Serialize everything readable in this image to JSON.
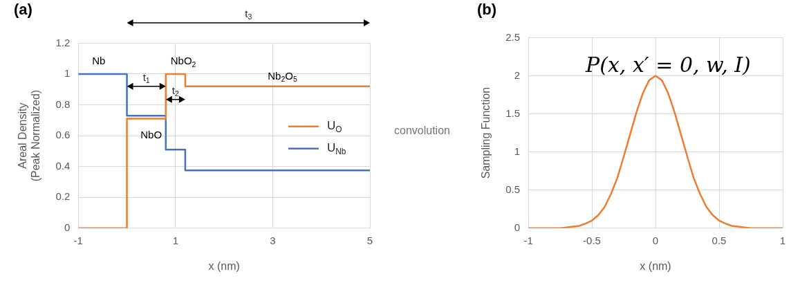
{
  "chart_data": [
    {
      "type": "step",
      "title": "(a)",
      "xlabel": "x (nm)",
      "ylabel": "Areal Density\n(Peak Normalized)",
      "x": [
        -1,
        0,
        0.8,
        1.2,
        5
      ],
      "series": [
        {
          "name": "U$_{O}$",
          "color": "#ed7d31",
          "values": [
            0,
            0.71,
            1,
            0.92,
            0.92
          ]
        },
        {
          "name": "U$_{Nb}$",
          "color": "#4472c4",
          "values": [
            1,
            0.73,
            0.51,
            0.375,
            0.375
          ]
        }
      ],
      "xlim": [
        -1,
        5
      ],
      "xticks": [
        -1,
        1,
        3,
        5
      ],
      "ylim": [
        0,
        1.2
      ],
      "yticks": [
        0,
        0.2,
        0.4,
        0.6,
        0.8,
        1,
        1.2
      ],
      "grid": true,
      "legend": "right",
      "annotations": [
        "Nb",
        "NbO$_{2}$",
        "Nb$_{2}$O$_{5}$",
        "NbO",
        {
          "text": "t$_{1}$",
          "x": 0.8,
          "y": 0.92
        },
        {
          "text": "t$_{2}$",
          "x": 1.2,
          "y": 0.92
        },
        "t$_{3}$"
      ]
    },
    {
      "type": "line",
      "title": "(b)",
      "xlabel": "x (nm)",
      "ylabel": "Sampling Function",
      "x": [
        -1,
        -0.9,
        -0.8,
        -0.75,
        -0.7,
        -0.65,
        -0.6,
        -0.55,
        -0.5,
        -0.45,
        -0.4,
        -0.35,
        -0.3,
        -0.25,
        -0.2,
        -0.15,
        -0.1,
        -0.05,
        0,
        0.05,
        0.1,
        0.15,
        0.2,
        0.25,
        0.3,
        0.35,
        0.4,
        0.45,
        0.5,
        0.55,
        0.6,
        0.65,
        0.7,
        0.75,
        0.8,
        0.9,
        1
      ],
      "series": [
        {
          "color": "#ed7d31",
          "values": [
            0,
            0,
            0,
            0,
            0.01,
            0.02,
            0.03,
            0.06,
            0.1,
            0.17,
            0.28,
            0.45,
            0.66,
            0.94,
            1.23,
            1.52,
            1.77,
            1.94,
            2,
            1.94,
            1.77,
            1.52,
            1.23,
            0.94,
            0.66,
            0.45,
            0.28,
            0.17,
            0.1,
            0.06,
            0.03,
            0.02,
            0.01,
            0,
            0,
            0,
            0
          ]
        }
      ],
      "xlim": [
        -1,
        1
      ],
      "xticks": [
        -1,
        -0.5,
        0,
        0.5,
        1
      ],
      "ylim": [
        0,
        2.5
      ],
      "yticks": [
        0,
        0.5,
        1,
        1.5,
        2,
        2.5
      ],
      "grid": true,
      "annotations": [
        "P(x, x′ = 0, w, I)",
        "convolution"
      ]
    }
  ]
}
